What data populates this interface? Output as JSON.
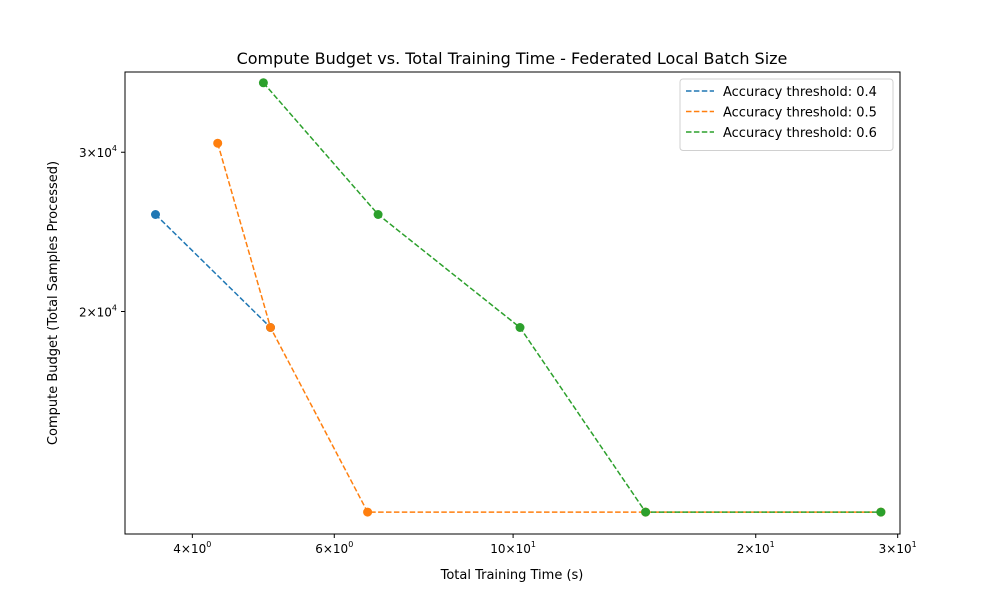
{
  "chart_data": {
    "type": "line",
    "title": "Compute Budget vs. Total Training Time - Federated Local Batch Size",
    "xlabel": "Total Training Time (s)",
    "ylabel": "Compute Budget (Total Samples Processed)",
    "xscale": "log",
    "yscale": "log",
    "xlim": [
      3.3,
      30.2
    ],
    "ylim": [
      11350,
      36800
    ],
    "x_ticks": [
      {
        "value": 4,
        "base": "4",
        "sup": "0"
      },
      {
        "value": 6,
        "base": "6",
        "sup": "0"
      },
      {
        "value": 10,
        "base": "10",
        "sup": "1"
      },
      {
        "value": 20,
        "base": "2",
        "sup": "1"
      },
      {
        "value": 30,
        "base": "3",
        "sup": "1"
      }
    ],
    "y_ticks": [
      {
        "value": 20000,
        "base": "2",
        "sup": "4"
      },
      {
        "value": 30000,
        "base": "3",
        "sup": "4"
      }
    ],
    "grid": false,
    "legend_position": "top-right",
    "series": [
      {
        "name": "Accuracy threshold: 0.4",
        "color": "#1f77b4",
        "x": [
          3.6,
          5.0
        ],
        "y": [
          25600,
          19200
        ]
      },
      {
        "name": "Accuracy threshold: 0.5",
        "color": "#ff7f0e",
        "x": [
          4.3,
          5.0,
          6.6,
          14.6,
          28.6
        ],
        "y": [
          30700,
          19200,
          12000,
          12000,
          12000
        ]
      },
      {
        "name": "Accuracy threshold: 0.6",
        "color": "#2ca02c",
        "x": [
          4.9,
          6.8,
          10.2,
          14.6,
          28.6
        ],
        "y": [
          35800,
          25600,
          19200,
          12000,
          12000
        ]
      }
    ]
  }
}
